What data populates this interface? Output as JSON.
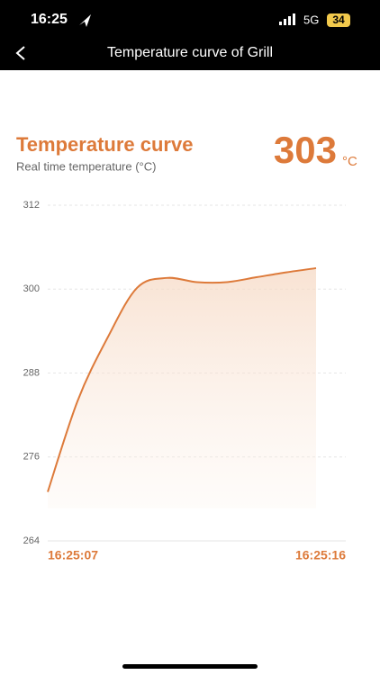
{
  "status_bar": {
    "time": "16:25",
    "network": "5G",
    "battery": "34"
  },
  "nav": {
    "title": "Temperature curve of Grill"
  },
  "chart_data": {
    "type": "line",
    "title": "Temperature curve",
    "subtitle": "Real time temperature (°C)",
    "current_value": 303,
    "current_unit": "°C",
    "categories": [
      "16:25:07",
      null,
      null,
      null,
      null,
      null,
      null,
      null,
      null,
      "16:25:16"
    ],
    "values": [
      271,
      284,
      293,
      300.2,
      301.6,
      301,
      301,
      301.7,
      302.4,
      303
    ],
    "color": "#dd7a3a",
    "ylim": [
      264,
      312
    ],
    "yticks": [
      264,
      276,
      288,
      300,
      312
    ],
    "grid": true
  }
}
